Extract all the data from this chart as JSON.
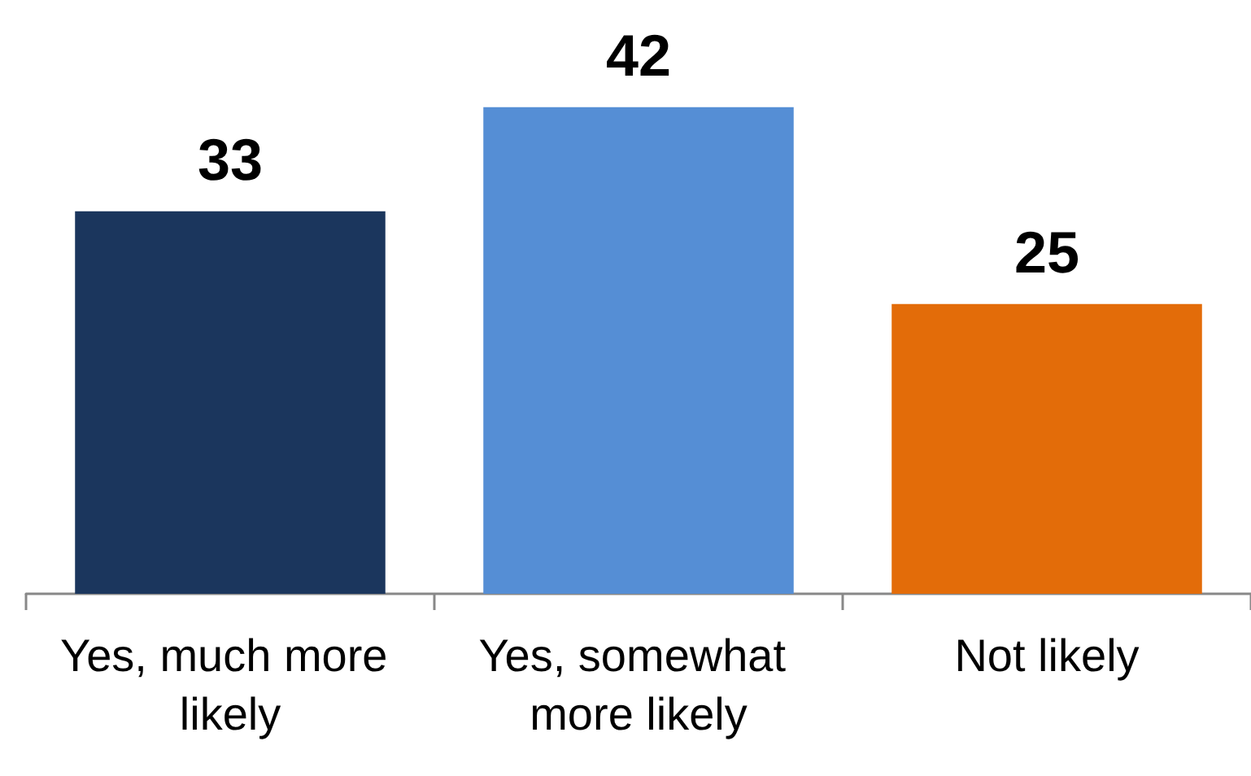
{
  "chart_data": {
    "type": "bar",
    "categories": [
      "Yes, much more likely",
      "Yes, somewhat more likely",
      "Not likely"
    ],
    "values": [
      33,
      42,
      25
    ],
    "colors": [
      "#1b365d",
      "#558ed5",
      "#e36c09"
    ],
    "data_labels": true
  }
}
